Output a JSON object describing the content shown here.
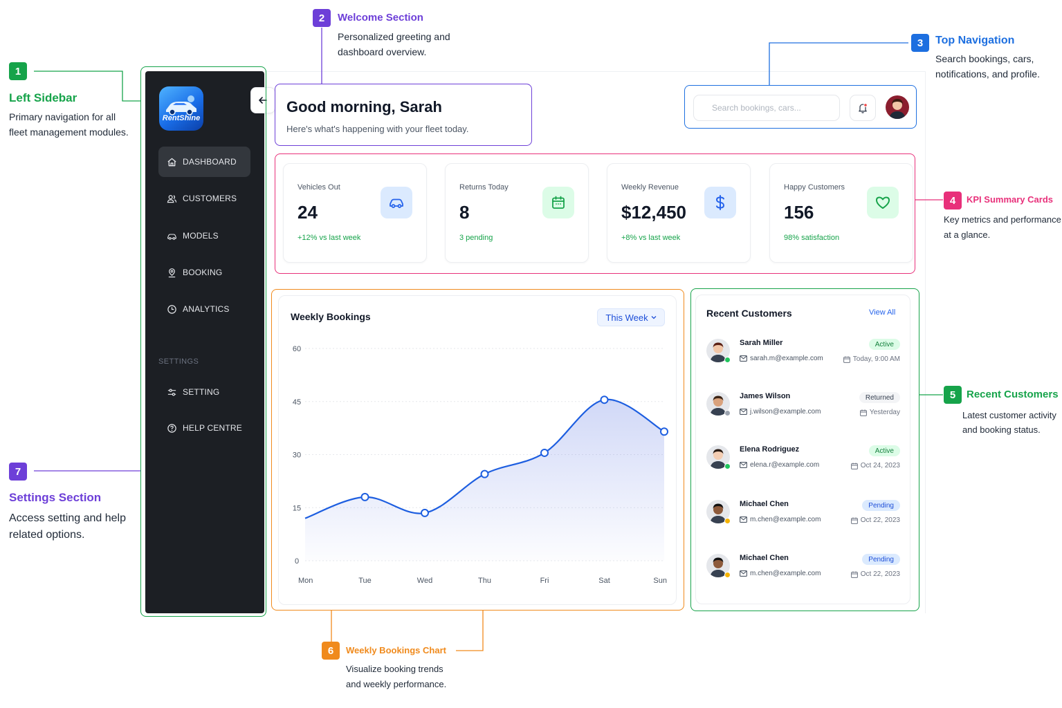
{
  "annotations": {
    "a1": {
      "num": "1",
      "title": "Left Sidebar",
      "desc1": "Primary navigation for all",
      "desc2": "fleet management modules."
    },
    "a2": {
      "num": "2",
      "title": "Welcome Section",
      "desc1": "Personalized greeting and",
      "desc2": "dashboard overview."
    },
    "a3": {
      "num": "3",
      "title": "Top Navigation",
      "desc1": "Search bookings, cars,",
      "desc2": "notifications, and profile."
    },
    "a4": {
      "num": "4",
      "title": "KPI Summary Cards",
      "desc1": "Key metrics and performance",
      "desc2": "at a glance."
    },
    "a5": {
      "num": "5",
      "title": "Recent Customers",
      "desc1": "Latest customer activity",
      "desc2": "and booking status."
    },
    "a6": {
      "num": "6",
      "title": "Weekly Bookings Chart",
      "desc1": "Visualize booking trends",
      "desc2": "and weekly performance."
    },
    "a7": {
      "num": "7",
      "title": "Settings Section",
      "desc1": "Access setting and help",
      "desc2": "related options."
    }
  },
  "colors": {
    "green": "#16a34a",
    "purple": "#6d3fd8",
    "blue": "#1d6fe0",
    "pink": "#e8307a",
    "orange": "#f08a1c",
    "sidebar": "#1c1f24"
  },
  "sidebar": {
    "logo": "RentShine",
    "items": [
      {
        "label": "DASHBOARD",
        "icon": "home-icon"
      },
      {
        "label": "CUSTOMERS",
        "icon": "users-icon"
      },
      {
        "label": "MODELS",
        "icon": "car-icon"
      },
      {
        "label": "BOOKING",
        "icon": "location-pin-icon"
      },
      {
        "label": "ANALYTICS",
        "icon": "clock-icon"
      }
    ],
    "settings_label": "SETTINGS",
    "settings_items": [
      {
        "label": "SETTING",
        "icon": "sliders-icon"
      },
      {
        "label": "HELP CENTRE",
        "icon": "help-icon"
      }
    ]
  },
  "welcome": {
    "title": "Good morning, Sarah",
    "subtitle": "Here's what's happening with your fleet today."
  },
  "topnav": {
    "search_placeholder": "Search bookings, cars..."
  },
  "kpis": [
    {
      "label": "Vehicles Out",
      "value": "24",
      "note": "+12% vs last week",
      "icon": "car-icon"
    },
    {
      "label": "Returns Today",
      "value": "8",
      "note": "3 pending",
      "icon": "calendar-icon"
    },
    {
      "label": "Weekly Revenue",
      "value": "$12,450",
      "note": "+8% vs last week",
      "icon": "dollar-icon"
    },
    {
      "label": "Happy Customers",
      "value": "156",
      "note": "98% satisfaction",
      "icon": "heart-icon"
    }
  ],
  "chart": {
    "title": "Weekly Bookings",
    "range": "This Week"
  },
  "chart_data": {
    "type": "area",
    "title": "Weekly Bookings",
    "categories": [
      "Mon",
      "Tue",
      "Wed",
      "Thu",
      "Fri",
      "Sat",
      "Sun"
    ],
    "values": [
      12,
      18,
      13.5,
      24.5,
      30.5,
      45.5,
      36.5
    ],
    "marked_points": [
      false,
      true,
      true,
      true,
      true,
      true,
      true
    ],
    "yticks": [
      0,
      15,
      30,
      45,
      60
    ],
    "ylim": [
      0,
      60
    ],
    "grid": true
  },
  "customers": {
    "title": "Recent Customers",
    "view_all": "View All",
    "rows": [
      {
        "name": "Sarah Miller",
        "email": "sarah.m@example.com",
        "status": "Active",
        "time": "Today, 9:00 AM",
        "presence": "#22c55e"
      },
      {
        "name": "James Wilson",
        "email": "j.wilson@example.com",
        "status": "Returned",
        "time": "Yesterday",
        "presence": "#9ca3af"
      },
      {
        "name": "Elena Rodriguez",
        "email": "elena.r@example.com",
        "status": "Active",
        "time": "Oct 24, 2023",
        "presence": "#22c55e"
      },
      {
        "name": "Michael Chen",
        "email": "m.chen@example.com",
        "status": "Pending",
        "time": "Oct 22, 2023",
        "presence": "#f5b301"
      },
      {
        "name": "Michael Chen",
        "email": "m.chen@example.com",
        "status": "Pending",
        "time": "Oct 22, 2023",
        "presence": "#f5b301"
      }
    ]
  }
}
